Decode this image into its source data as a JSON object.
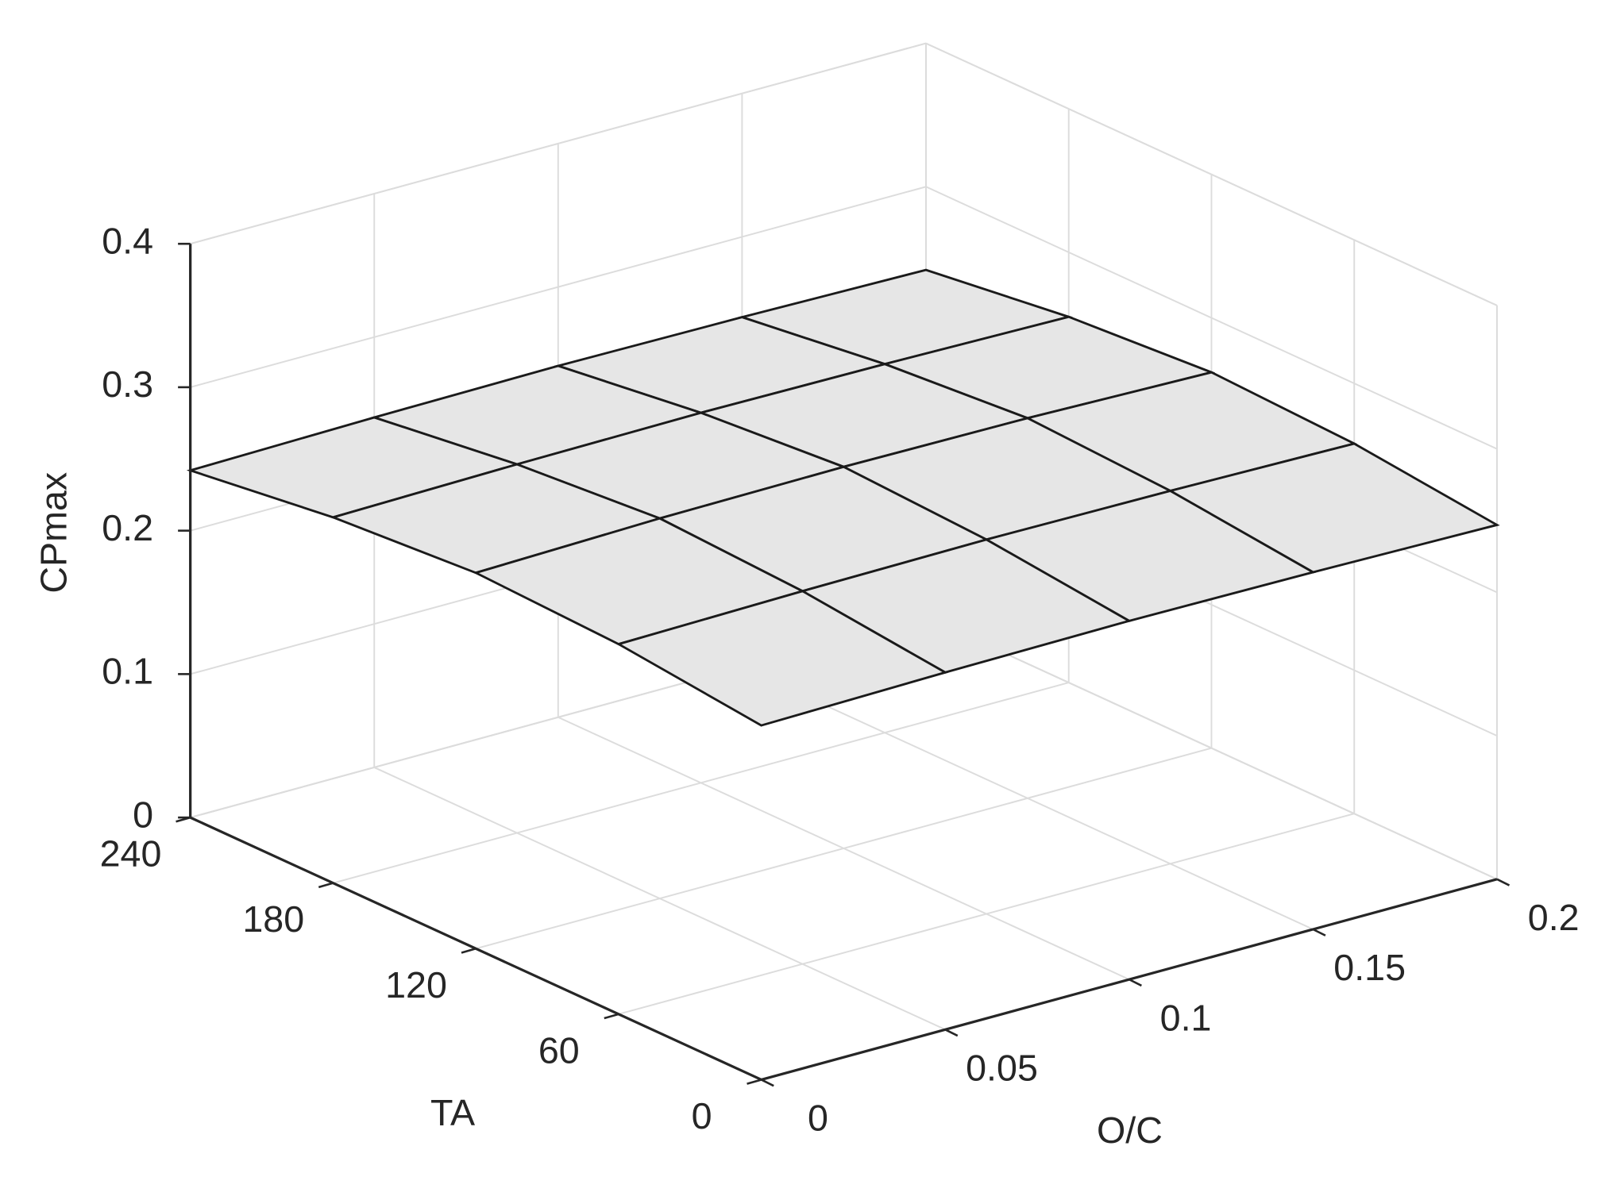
{
  "chart_data": {
    "type": "surface",
    "xlabel": "O/C",
    "ylabel": "TA",
    "zlabel": "CPmax",
    "x": [
      0,
      0.05,
      0.1,
      0.15,
      0.2
    ],
    "y": [
      0,
      60,
      120,
      180,
      240
    ],
    "z": [
      [
        0.247,
        0.249,
        0.25,
        0.249,
        0.247
      ],
      [
        0.258,
        0.26,
        0.261,
        0.26,
        0.258
      ],
      [
        0.262,
        0.265,
        0.266,
        0.265,
        0.262
      ],
      [
        0.255,
        0.257,
        0.258,
        0.257,
        0.255
      ],
      [
        0.242,
        0.244,
        0.245,
        0.244,
        0.242
      ]
    ],
    "xlim": [
      0,
      0.2
    ],
    "xticks": [
      0,
      0.05,
      0.1,
      0.15,
      0.2
    ],
    "ylim": [
      0,
      240
    ],
    "yticks": [
      0,
      60,
      120,
      180,
      240
    ],
    "zlim": [
      0,
      0.4
    ],
    "zticks": [
      0,
      0.1,
      0.2,
      0.3,
      0.4
    ],
    "color": "#e6e6e6",
    "grid": true
  }
}
